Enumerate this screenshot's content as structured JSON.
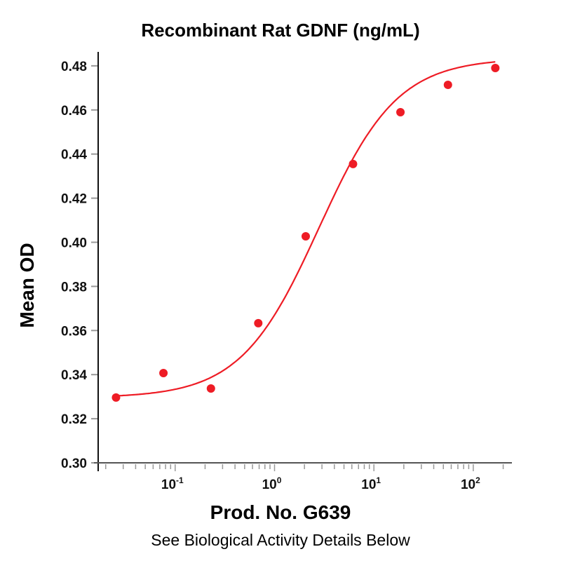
{
  "chart_data": {
    "type": "scatter",
    "title": "Recombinant Rat GDNF (ng/mL)",
    "xlabel": "Prod. No. G639",
    "ylabel": "Mean OD",
    "footer": "See Biological Activity Details Below",
    "xscale": "log",
    "xlim": [
      0.0176,
      257
    ],
    "ylim": [
      0.3,
      0.485
    ],
    "yticks": [
      "0.30",
      "0.32",
      "0.34",
      "0.36",
      "0.38",
      "0.40",
      "0.42",
      "0.44",
      "0.46",
      "0.48"
    ],
    "xticks": [
      {
        "base": "10",
        "exp": "-1"
      },
      {
        "base": "10",
        "exp": "0"
      },
      {
        "base": "10",
        "exp": "1"
      },
      {
        "base": "10",
        "exp": "2"
      }
    ],
    "color": "#ee1c25",
    "series": [
      {
        "name": "Mean OD",
        "x": [
          0.0254,
          0.0762,
          0.229,
          0.686,
          2.06,
          6.17,
          18.5,
          55.6,
          166.7
        ],
        "y": [
          0.3296,
          0.3407,
          0.3337,
          0.3633,
          0.4027,
          0.4355,
          0.459,
          0.4714,
          0.479
        ]
      }
    ],
    "fit": {
      "model": "4PL",
      "bottom": 0.3295,
      "top": 0.4835,
      "ec50": 2.8,
      "hill": 1.1
    }
  }
}
